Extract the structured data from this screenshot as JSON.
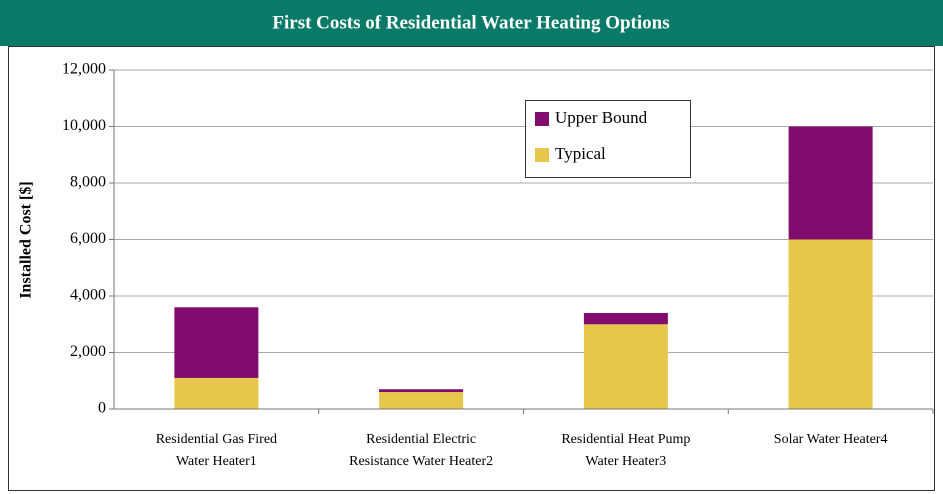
{
  "chart_data": {
    "type": "stacked_bar",
    "title": "First Costs of Residential Water Heating Options",
    "y_label": "Installed Cost [$]",
    "categories": [
      "Residential Gas Fired\nWater Heater1",
      "Residential Electric\nResistance Water Heater2",
      "Residential Heat Pump\nWater Heater3",
      "Solar Water Heater4"
    ],
    "series": [
      {
        "name": "Typical",
        "color": "#e6c64b",
        "values": [
          1100,
          600,
          3000,
          6000
        ]
      },
      {
        "name": "Upper Bound",
        "color": "#820c6e",
        "values": [
          2500,
          100,
          400,
          4000
        ]
      }
    ],
    "ylim": [
      0,
      12000
    ],
    "yticks": [
      0,
      {
        "value": 2000,
        "label": "2,000"
      },
      {
        "value": 4000,
        "label": "4,000"
      },
      {
        "value": 6000,
        "label": "6,000"
      },
      {
        "value": 8000,
        "label": "8,000"
      },
      {
        "value": 10000,
        "label": "10,000"
      },
      {
        "value": 12000,
        "label": "12,000"
      }
    ],
    "grid": true
  }
}
